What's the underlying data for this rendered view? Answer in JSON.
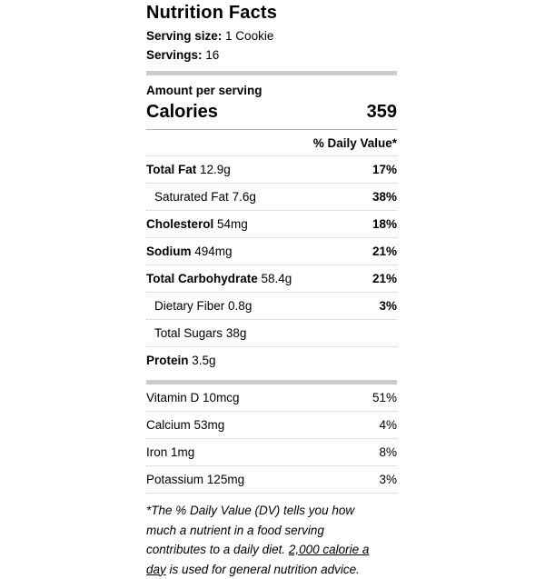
{
  "label": {
    "title": "Nutrition Facts",
    "serving_size_label": "Serving size:",
    "serving_size_value": "1 Cookie",
    "servings_label": "Servings:",
    "servings_value": "16",
    "amount_per_serving": "Amount per serving",
    "calories_label": "Calories",
    "calories_value": "359",
    "daily_value_header": "% Daily Value*"
  },
  "nutrients": [
    {
      "name": "Total Fat",
      "amount": "12.9g",
      "dv": "17%",
      "bold": true,
      "indent": false,
      "dv_bold": true
    },
    {
      "name": "Saturated Fat",
      "amount": "7.6g",
      "dv": "38%",
      "bold": false,
      "indent": true,
      "dv_bold": true
    },
    {
      "name": "Cholesterol",
      "amount": "54mg",
      "dv": "18%",
      "bold": true,
      "indent": false,
      "dv_bold": true
    },
    {
      "name": "Sodium",
      "amount": "494mg",
      "dv": "21%",
      "bold": true,
      "indent": false,
      "dv_bold": true
    },
    {
      "name": "Total Carbohydrate",
      "amount": "58.4g",
      "dv": "21%",
      "bold": true,
      "indent": false,
      "dv_bold": true
    },
    {
      "name": "Dietary Fiber",
      "amount": "0.8g",
      "dv": "3%",
      "bold": false,
      "indent": true,
      "dv_bold": true
    },
    {
      "name": "Total Sugars",
      "amount": "38g",
      "dv": "",
      "bold": false,
      "indent": true,
      "dv_bold": false
    },
    {
      "name": "Protein",
      "amount": "3.5g",
      "dv": "",
      "bold": true,
      "indent": false,
      "dv_bold": false
    }
  ],
  "vitamins": [
    {
      "name": "Vitamin D",
      "amount": "10mcg",
      "dv": "51%"
    },
    {
      "name": "Calcium",
      "amount": "53mg",
      "dv": "4%"
    },
    {
      "name": "Iron",
      "amount": "1mg",
      "dv": "8%"
    },
    {
      "name": "Potassium",
      "amount": "125mg",
      "dv": "3%"
    }
  ],
  "footnote": {
    "lines": [
      {
        "pre": "*The % Daily Value (DV) tells you how",
        "underline": "",
        "post": ""
      },
      {
        "pre": "much a nutrient in a food serving",
        "underline": "",
        "post": ""
      },
      {
        "pre": "contributes to a daily diet. ",
        "underline": "2,000 calorie a",
        "post": ""
      },
      {
        "pre": "",
        "underline": "day",
        "post": " is used for general nutrition advice."
      }
    ]
  },
  "colors": {
    "background": "#ffffff",
    "text": "#000000",
    "separator_dotted": "#c9c9c9",
    "separator_solid": "#b3b3b3",
    "thick_bar": "#cccccc"
  }
}
